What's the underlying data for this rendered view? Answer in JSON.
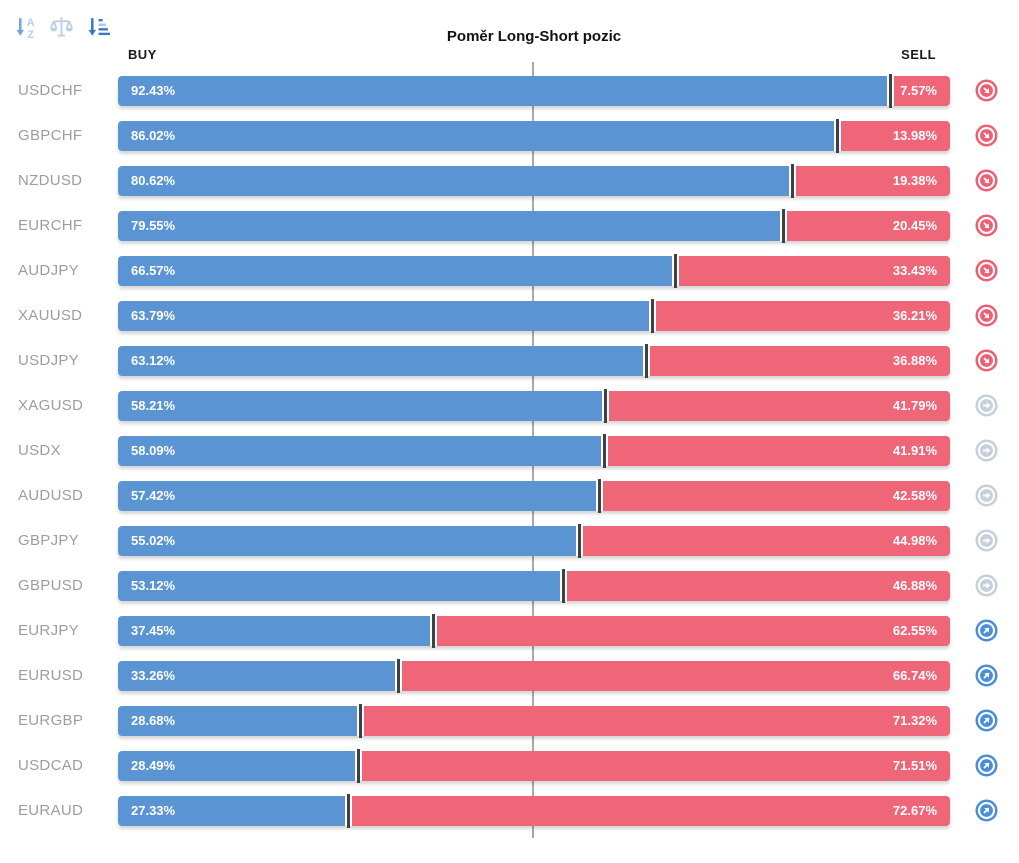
{
  "title": "Poměr Long-Short pozic",
  "columns": {
    "buy": "BUY",
    "sell": "SELL"
  },
  "toolbar": {
    "icons": [
      {
        "name": "sort-alphabetical-icon"
      },
      {
        "name": "balance-scale-icon"
      },
      {
        "name": "sort-amount-icon"
      }
    ]
  },
  "colors": {
    "buy_bar": "#5b94d3",
    "sell_bar": "#ef6678",
    "signal_sell_arrow": "#ee5f73",
    "signal_neutral_arrow": "#c7cfda",
    "signal_buy_arrow": "#4a8ed8",
    "pair_label": "#9d9d9d",
    "midline": "#a9a9a9",
    "bar_divider": "#3f3f46"
  },
  "rows": [
    {
      "pair": "USDCHF",
      "buy_label": "92.43%",
      "sell_label": "7.57%",
      "buy_pct": 92.43,
      "sell_pct": 7.57,
      "signal": "down"
    },
    {
      "pair": "GBPCHF",
      "buy_label": "86.02%",
      "sell_label": "13.98%",
      "buy_pct": 86.02,
      "sell_pct": 13.98,
      "signal": "down"
    },
    {
      "pair": "NZDUSD",
      "buy_label": "80.62%",
      "sell_label": "19.38%",
      "buy_pct": 80.62,
      "sell_pct": 19.38,
      "signal": "down"
    },
    {
      "pair": "EURCHF",
      "buy_label": "79.55%",
      "sell_label": "20.45%",
      "buy_pct": 79.55,
      "sell_pct": 20.45,
      "signal": "down"
    },
    {
      "pair": "AUDJPY",
      "buy_label": "66.57%",
      "sell_label": "33.43%",
      "buy_pct": 66.57,
      "sell_pct": 33.43,
      "signal": "down"
    },
    {
      "pair": "XAUUSD",
      "buy_label": "63.79%",
      "sell_label": "36.21%",
      "buy_pct": 63.79,
      "sell_pct": 36.21,
      "signal": "down"
    },
    {
      "pair": "USDJPY",
      "buy_label": "63.12%",
      "sell_label": "36.88%",
      "buy_pct": 63.12,
      "sell_pct": 36.88,
      "signal": "down"
    },
    {
      "pair": "XAGUSD",
      "buy_label": "58.21%",
      "sell_label": "41.79%",
      "buy_pct": 58.21,
      "sell_pct": 41.79,
      "signal": "flat"
    },
    {
      "pair": "USDX",
      "buy_label": "58.09%",
      "sell_label": "41.91%",
      "buy_pct": 58.09,
      "sell_pct": 41.91,
      "signal": "flat"
    },
    {
      "pair": "AUDUSD",
      "buy_label": "57.42%",
      "sell_label": "42.58%",
      "buy_pct": 57.42,
      "sell_pct": 42.58,
      "signal": "flat"
    },
    {
      "pair": "GBPJPY",
      "buy_label": "55.02%",
      "sell_label": "44.98%",
      "buy_pct": 55.02,
      "sell_pct": 44.98,
      "signal": "flat"
    },
    {
      "pair": "GBPUSD",
      "buy_label": "53.12%",
      "sell_label": "46.88%",
      "buy_pct": 53.12,
      "sell_pct": 46.88,
      "signal": "flat"
    },
    {
      "pair": "EURJPY",
      "buy_label": "37.45%",
      "sell_label": "62.55%",
      "buy_pct": 37.45,
      "sell_pct": 62.55,
      "signal": "up"
    },
    {
      "pair": "EURUSD",
      "buy_label": "33.26%",
      "sell_label": "66.74%",
      "buy_pct": 33.26,
      "sell_pct": 66.74,
      "signal": "up"
    },
    {
      "pair": "EURGBP",
      "buy_label": "28.68%",
      "sell_label": "71.32%",
      "buy_pct": 28.68,
      "sell_pct": 71.32,
      "signal": "up"
    },
    {
      "pair": "USDCAD",
      "buy_label": "28.49%",
      "sell_label": "71.51%",
      "buy_pct": 28.49,
      "sell_pct": 71.51,
      "signal": "up"
    },
    {
      "pair": "EURAUD",
      "buy_label": "27.33%",
      "sell_label": "72.67%",
      "buy_pct": 27.33,
      "sell_pct": 72.67,
      "signal": "up"
    }
  ],
  "chart_data": {
    "type": "bar",
    "variant": "horizontal-diverging-stacked",
    "title": "Poměr Long-Short pozic",
    "categories": [
      "USDCHF",
      "GBPCHF",
      "NZDUSD",
      "EURCHF",
      "AUDJPY",
      "XAUUSD",
      "USDJPY",
      "XAGUSD",
      "USDX",
      "AUDUSD",
      "GBPJPY",
      "GBPUSD",
      "EURJPY",
      "EURUSD",
      "EURGBP",
      "USDCAD",
      "EURAUD"
    ],
    "series": [
      {
        "name": "BUY",
        "color": "#5b94d3",
        "values": [
          92.43,
          86.02,
          80.62,
          79.55,
          66.57,
          63.79,
          63.12,
          58.21,
          58.09,
          57.42,
          55.02,
          53.12,
          37.45,
          33.26,
          28.68,
          28.49,
          27.33
        ]
      },
      {
        "name": "SELL",
        "color": "#ef6678",
        "values": [
          7.57,
          13.98,
          19.38,
          20.45,
          33.43,
          36.21,
          36.88,
          41.79,
          41.91,
          42.58,
          44.98,
          46.88,
          62.55,
          66.74,
          71.32,
          71.51,
          72.67
        ]
      }
    ],
    "unit": "%",
    "xlim": [
      0,
      100
    ],
    "midline_at": 50,
    "grid": false,
    "value_labels": "inside-bar-ends",
    "legend_position": "column headers: BUY top-left, SELL top-right"
  }
}
